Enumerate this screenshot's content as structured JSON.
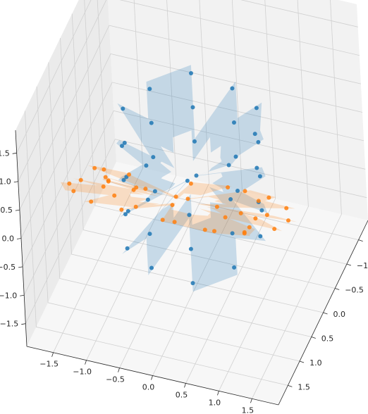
{
  "chart_data": {
    "type": "scatter",
    "projection": "3d",
    "title": "",
    "xlabel": "",
    "ylabel": "",
    "zlabel": "",
    "xlim": [
      -1.9,
      1.9
    ],
    "ylim": [
      -1.9,
      1.9
    ],
    "zlim": [
      -1.9,
      1.9
    ],
    "x_ticks": [
      "−1.5",
      "−1.0",
      "−0.5",
      "0.0",
      "0.5",
      "1.0",
      "1.5"
    ],
    "y_ticks": [
      "−1.5",
      "−1.0",
      "−0.5",
      "0.0",
      "0.5",
      "1.0",
      "1.5"
    ],
    "z_ticks": [
      "−1.5",
      "−1.0",
      "−0.5",
      "0.0",
      "0.5",
      "1.0",
      "1.5"
    ],
    "x_tick_values": [
      -1.5,
      -1.0,
      -0.5,
      0.0,
      0.5,
      1.0,
      1.5
    ],
    "y_tick_values": [
      -1.5,
      -1.0,
      -0.5,
      0.0,
      0.5,
      1.0,
      1.5
    ],
    "z_tick_values": [
      -1.5,
      -1.0,
      -0.5,
      0.0,
      0.5,
      1.0,
      1.5
    ],
    "grid": true,
    "legend": false,
    "series": [
      {
        "color": "#1f77b4",
        "surface_alpha": 0.22,
        "description_shape": "cylindrical band (radius 1, centered at origin, axis along z), height -1 to 1",
        "points": [
          [
            1.0,
            0.0,
            -0.8
          ],
          [
            1.0,
            0.0,
            -0.2
          ],
          [
            1.0,
            0.0,
            0.4
          ],
          [
            1.0,
            0.0,
            1.0
          ],
          [
            0.809,
            0.588,
            -0.9
          ],
          [
            0.809,
            0.588,
            -0.3
          ],
          [
            0.809,
            0.588,
            0.3
          ],
          [
            0.809,
            0.588,
            0.9
          ],
          [
            0.309,
            0.951,
            -1.0
          ],
          [
            0.309,
            0.951,
            -0.4
          ],
          [
            0.309,
            0.951,
            0.2
          ],
          [
            0.309,
            0.951,
            0.8
          ],
          [
            -0.309,
            0.951,
            -0.9
          ],
          [
            -0.309,
            0.951,
            -0.3
          ],
          [
            -0.309,
            0.951,
            0.3
          ],
          [
            -0.309,
            0.951,
            0.9
          ],
          [
            -0.809,
            0.588,
            -1.0
          ],
          [
            -0.809,
            0.588,
            -0.4
          ],
          [
            -0.809,
            0.588,
            0.2
          ],
          [
            -0.809,
            0.588,
            0.8
          ],
          [
            -1.0,
            0.0,
            -0.9
          ],
          [
            -1.0,
            0.0,
            -0.3
          ],
          [
            -1.0,
            0.0,
            0.3
          ],
          [
            -1.0,
            0.0,
            0.9
          ],
          [
            -0.809,
            -0.588,
            -1.0
          ],
          [
            -0.809,
            -0.588,
            -0.4
          ],
          [
            -0.809,
            -0.588,
            0.2
          ],
          [
            -0.809,
            -0.588,
            0.8
          ],
          [
            -0.309,
            -0.951,
            -0.9
          ],
          [
            -0.309,
            -0.951,
            -0.3
          ],
          [
            -0.309,
            -0.951,
            0.3
          ],
          [
            -0.309,
            -0.951,
            0.9
          ],
          [
            0.309,
            -0.951,
            -1.0
          ],
          [
            0.309,
            -0.951,
            -0.4
          ],
          [
            0.309,
            -0.951,
            0.2
          ],
          [
            0.309,
            -0.951,
            0.8
          ],
          [
            0.809,
            -0.588,
            -0.9
          ],
          [
            0.809,
            -0.588,
            -0.3
          ],
          [
            0.809,
            -0.588,
            0.3
          ],
          [
            0.809,
            -0.588,
            0.9
          ]
        ]
      },
      {
        "color": "#ff7f0e",
        "surface_alpha": 0.22,
        "description_shape": "torus-like band tilted, centered near y = 0.9",
        "points": [
          [
            1.2,
            1.0,
            0.9
          ],
          [
            1.4,
            0.6,
            0.5
          ],
          [
            1.5,
            0.2,
            0.0
          ],
          [
            1.4,
            -0.1,
            -0.5
          ],
          [
            1.1,
            -0.3,
            -0.9
          ],
          [
            0.6,
            -0.4,
            -1.2
          ],
          [
            0.0,
            -0.4,
            -1.3
          ],
          [
            -0.6,
            -0.3,
            -1.2
          ],
          [
            -1.1,
            0.0,
            -0.9
          ],
          [
            -1.4,
            0.4,
            -0.5
          ],
          [
            -1.5,
            0.8,
            0.0
          ],
          [
            -1.4,
            1.2,
            0.5
          ],
          [
            -1.1,
            1.5,
            0.9
          ],
          [
            -0.6,
            1.7,
            1.2
          ],
          [
            0.0,
            1.8,
            1.3
          ],
          [
            0.6,
            1.7,
            1.2
          ],
          [
            0.8,
            1.1,
            0.6
          ],
          [
            1.0,
            0.7,
            0.2
          ],
          [
            1.0,
            0.4,
            -0.3
          ],
          [
            0.8,
            0.1,
            -0.7
          ],
          [
            0.3,
            0.0,
            -0.9
          ],
          [
            -0.3,
            0.0,
            -0.9
          ],
          [
            -0.8,
            0.2,
            -0.6
          ],
          [
            -1.0,
            0.5,
            -0.2
          ],
          [
            -1.0,
            0.9,
            0.3
          ],
          [
            -0.8,
            1.2,
            0.7
          ],
          [
            -0.3,
            1.4,
            0.9
          ],
          [
            0.3,
            1.4,
            0.9
          ],
          [
            0.5,
            1.3,
            1.1
          ],
          [
            0.9,
            0.9,
            0.8
          ],
          [
            1.2,
            0.5,
            0.3
          ],
          [
            1.2,
            0.2,
            -0.2
          ],
          [
            0.9,
            -0.1,
            -0.6
          ],
          [
            0.4,
            -0.2,
            -0.8
          ],
          [
            -0.4,
            -0.2,
            -0.8
          ],
          [
            -0.9,
            0.0,
            -0.5
          ],
          [
            -1.2,
            0.3,
            -0.1
          ],
          [
            -1.2,
            0.7,
            0.4
          ],
          [
            -0.9,
            1.1,
            0.8
          ],
          [
            -0.4,
            1.4,
            1.1
          ]
        ]
      }
    ]
  }
}
